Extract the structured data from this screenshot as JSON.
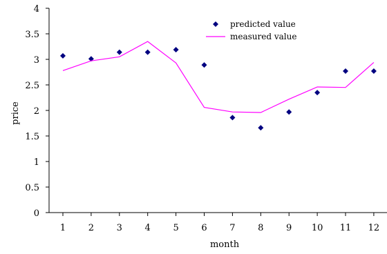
{
  "chart_data": {
    "type": "line",
    "title": "",
    "xlabel": "month",
    "ylabel": "price",
    "x": [
      1,
      2,
      3,
      4,
      5,
      6,
      7,
      8,
      9,
      10,
      11,
      12
    ],
    "x_tick_labels": [
      "1",
      "2",
      "3",
      "4",
      "5",
      "6",
      "7",
      "8",
      "9",
      "10",
      "11",
      "12"
    ],
    "y_tick_labels": [
      "0",
      "0.5",
      "1",
      "1.5",
      "2",
      "2.5",
      "3",
      "3.5",
      "4"
    ],
    "ylim": [
      0,
      4
    ],
    "grid": false,
    "legend_position": "top-right",
    "series": [
      {
        "name": "predicted value",
        "kind": "scatter",
        "marker": "diamond",
        "color": "#000080",
        "values": [
          3.07,
          3.01,
          3.14,
          3.14,
          3.19,
          2.89,
          1.86,
          1.66,
          1.97,
          2.35,
          2.77,
          2.77
        ]
      },
      {
        "name": "measured value",
        "kind": "line",
        "color": "#FF00FF",
        "values": [
          2.78,
          2.97,
          3.05,
          3.35,
          2.93,
          2.06,
          1.97,
          1.96,
          2.22,
          2.46,
          2.45,
          2.94
        ]
      }
    ]
  }
}
